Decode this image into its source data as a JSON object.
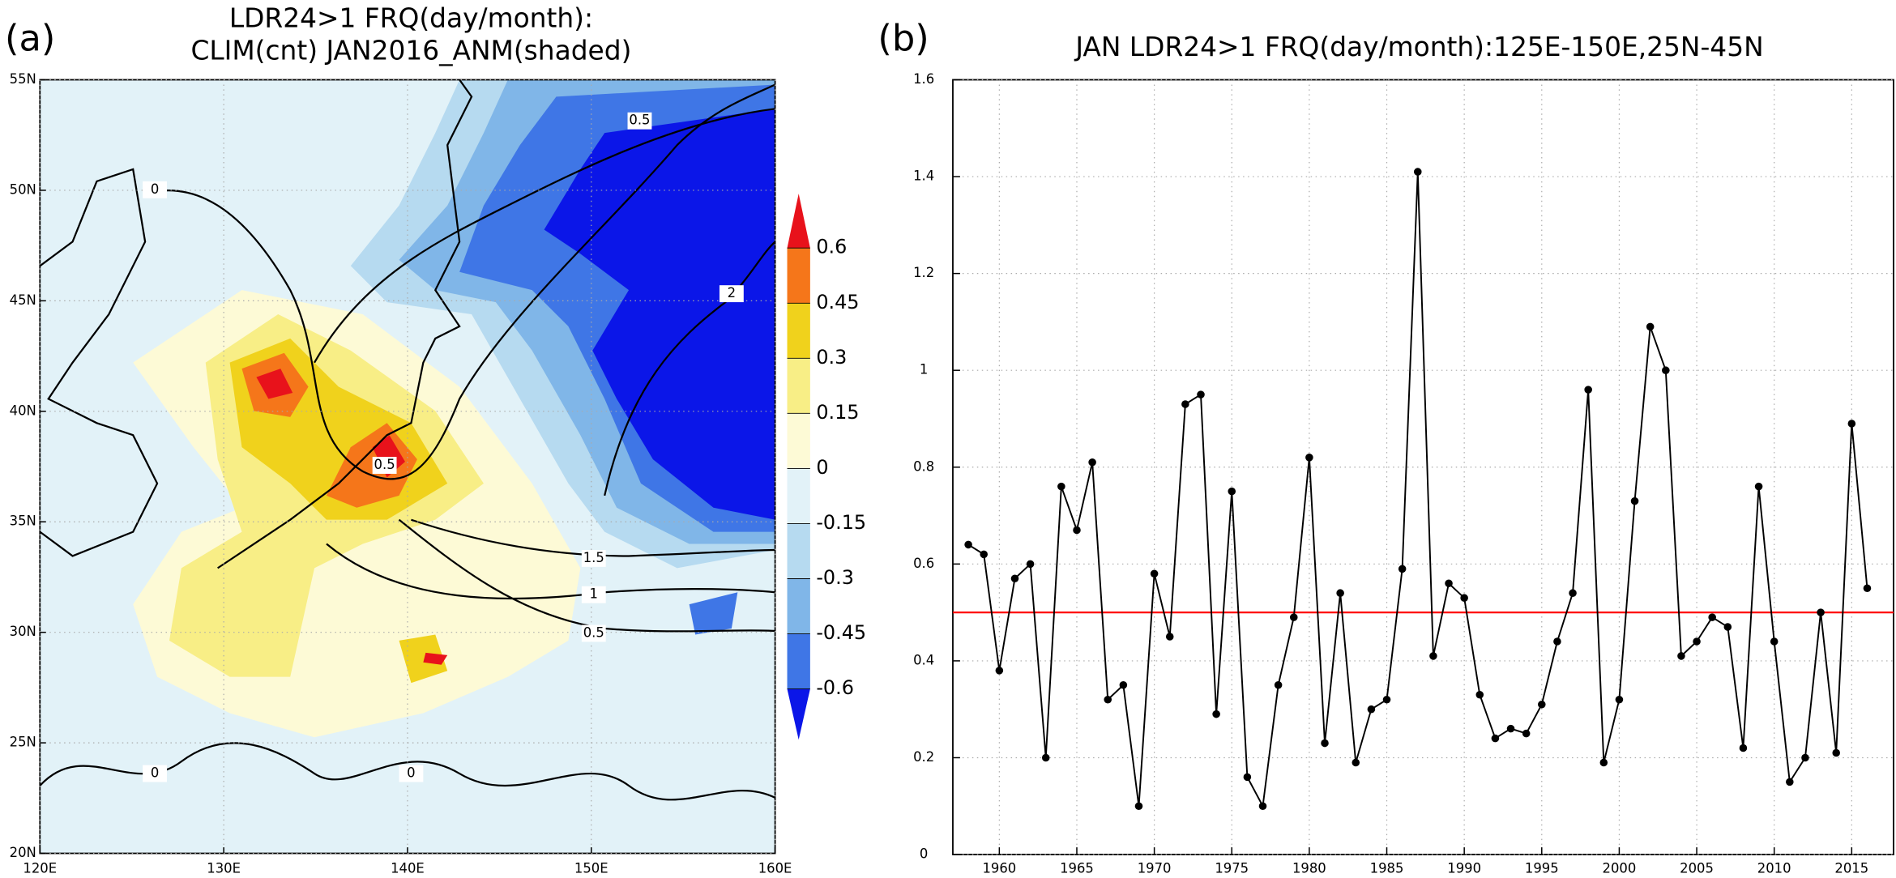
{
  "chart_data": [
    {
      "type": "contour",
      "panel_label": "(a)",
      "title": [
        "LDR24>1 FRQ(day/month):",
        "CLIM(cnt) JAN2016_ANM(shaded)"
      ],
      "xlim": [
        120,
        160
      ],
      "xticks": [
        {
          "value": 120,
          "label": "120E"
        },
        {
          "value": 130,
          "label": "130E"
        },
        {
          "value": 140,
          "label": "140E"
        },
        {
          "value": 150,
          "label": "150E"
        },
        {
          "value": 160,
          "label": "160E"
        }
      ],
      "ylim": [
        20,
        55
      ],
      "yticks": [
        {
          "value": 20,
          "label": "20N"
        },
        {
          "value": 25,
          "label": "25N"
        },
        {
          "value": 30,
          "label": "30N"
        },
        {
          "value": 35,
          "label": "35N"
        },
        {
          "value": 40,
          "label": "40N"
        },
        {
          "value": 45,
          "label": "45N"
        },
        {
          "value": 50,
          "label": "50N"
        },
        {
          "value": 55,
          "label": "55N"
        }
      ],
      "grid": true,
      "levels": [
        -0.6,
        -0.45,
        -0.3,
        -0.15,
        0,
        0.15,
        0.3,
        0.45,
        0.6
      ],
      "level_colors": [
        "#0b16e8",
        "#3f76e6",
        "#80b6e8",
        "#b6daf0",
        "#e2f2f8",
        "#fdfad6",
        "#f8ee86",
        "#f0d21c",
        "#f5761a",
        "#e8121b"
      ],
      "contour_labels": [
        0,
        0.5,
        2,
        0.5,
        1.5,
        1,
        0.5,
        0,
        0
      ]
    },
    {
      "type": "line",
      "panel_label": "(b)",
      "title": "JAN LDR24>1 FRQ(day/month):125E-150E,25N-45N",
      "x": [
        1958,
        1959,
        1960,
        1961,
        1962,
        1963,
        1964,
        1965,
        1966,
        1967,
        1968,
        1969,
        1970,
        1971,
        1972,
        1973,
        1974,
        1975,
        1976,
        1977,
        1978,
        1979,
        1980,
        1981,
        1982,
        1983,
        1984,
        1985,
        1986,
        1987,
        1988,
        1989,
        1990,
        1991,
        1992,
        1993,
        1994,
        1995,
        1996,
        1997,
        1998,
        1999,
        2000,
        2001,
        2002,
        2003,
        2004,
        2005,
        2006,
        2007,
        2008,
        2009,
        2010,
        2011,
        2012,
        2013,
        2014,
        2015,
        2016
      ],
      "values": [
        0.64,
        0.62,
        0.38,
        0.57,
        0.6,
        0.2,
        0.76,
        0.67,
        0.81,
        0.32,
        0.35,
        0.1,
        0.58,
        0.45,
        0.93,
        0.95,
        0.29,
        0.75,
        0.16,
        0.1,
        0.35,
        0.49,
        0.82,
        0.23,
        0.54,
        0.19,
        0.3,
        0.32,
        0.59,
        1.41,
        0.41,
        0.56,
        0.53,
        0.33,
        0.24,
        0.26,
        0.25,
        0.31,
        0.44,
        0.54,
        0.96,
        0.19,
        0.32,
        0.73,
        1.09,
        1.0,
        0.41,
        0.44,
        0.49,
        0.47,
        0.22,
        0.76,
        0.44,
        0.15,
        0.2,
        0.5,
        0.21,
        0.89,
        0.55
      ],
      "color": "#000000",
      "hline": 0.5,
      "hline_color": "#ff0000",
      "xlim": [
        1957,
        2017.7
      ],
      "xticks": [
        1960,
        1965,
        1970,
        1975,
        1980,
        1985,
        1990,
        1995,
        2000,
        2005,
        2010,
        2015
      ],
      "ylim": [
        0,
        1.6
      ],
      "yticks": [
        0,
        0.2,
        0.4,
        0.6,
        0.8,
        1,
        1.2,
        1.4,
        1.6
      ],
      "grid": true
    }
  ]
}
